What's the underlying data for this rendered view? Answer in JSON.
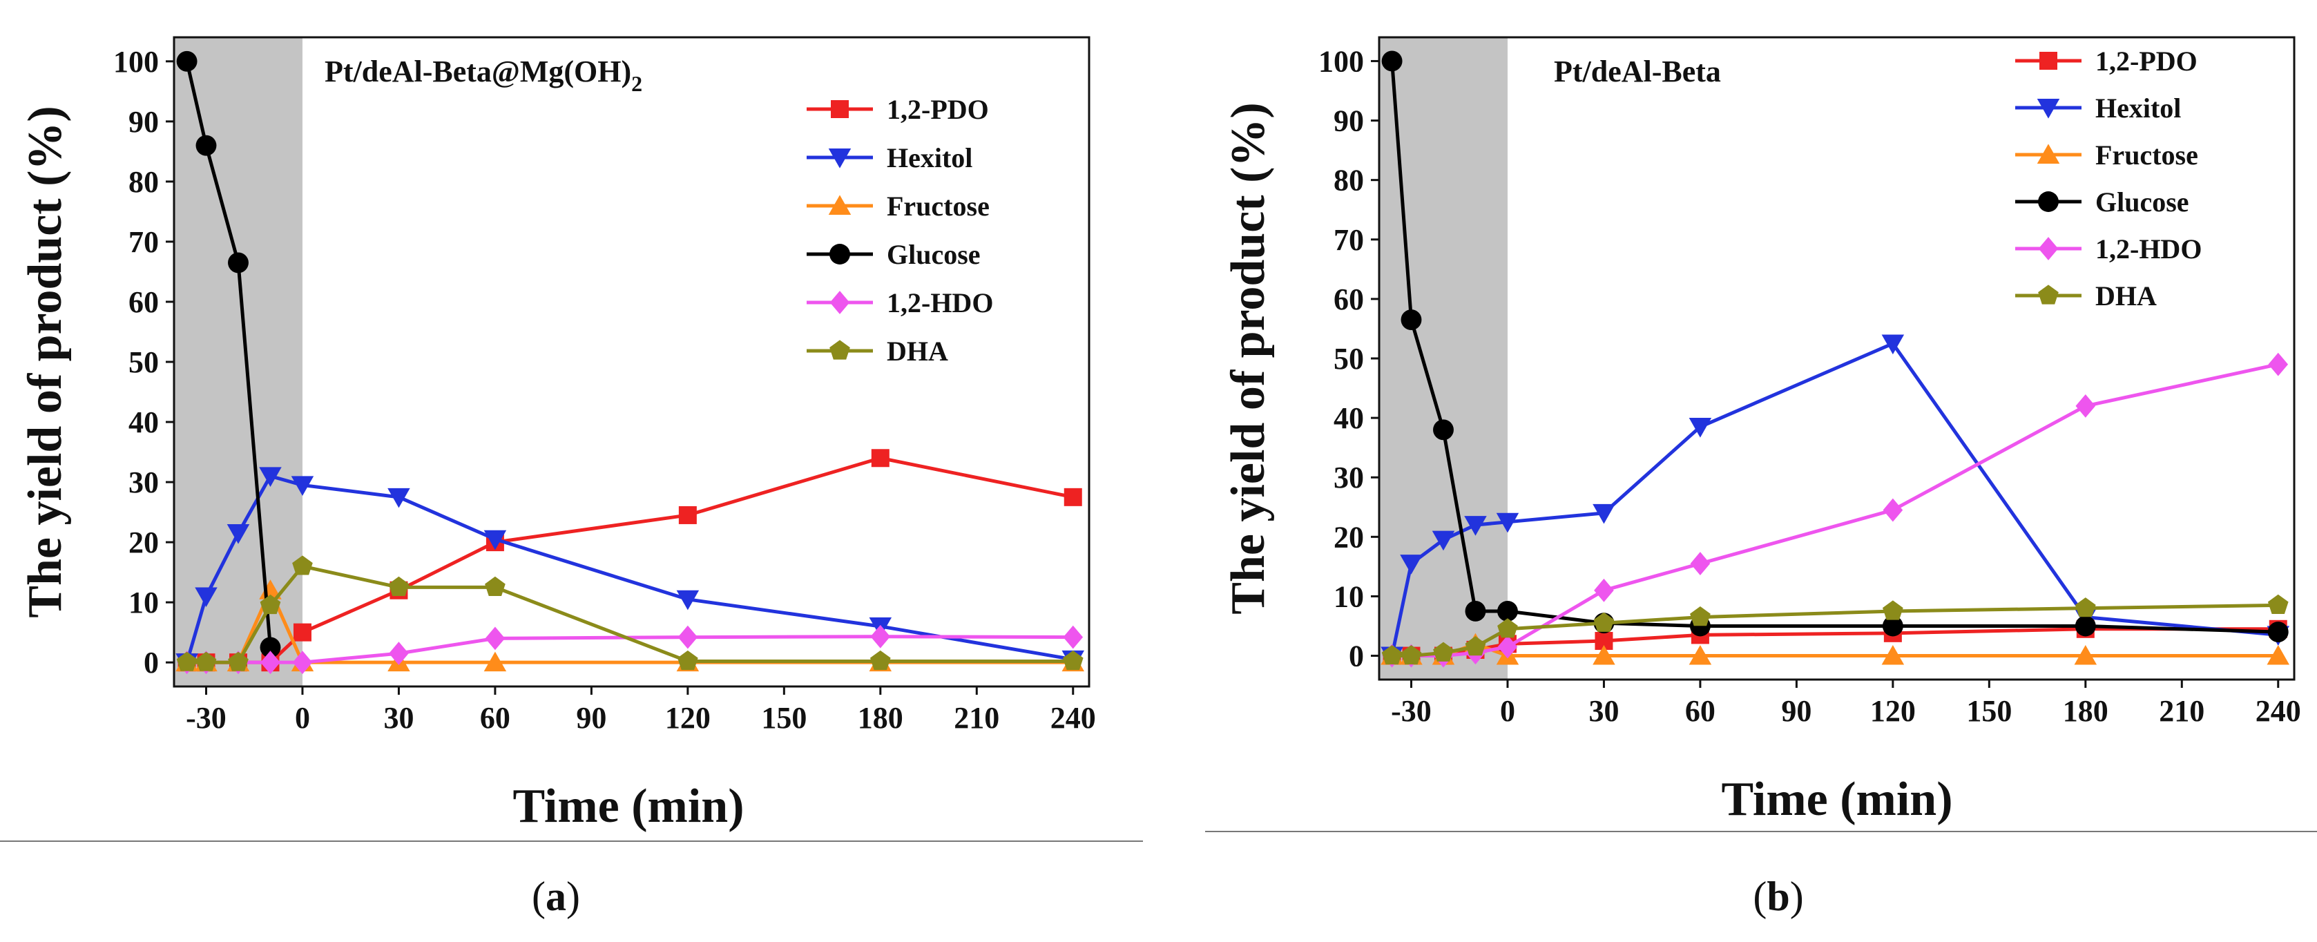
{
  "chart_data": [
    {
      "type": "line",
      "panel_label": "a",
      "title": "Pt/deAl-Beta@Mg(OH)",
      "title_subscript": "2",
      "xlabel": "Time (min)",
      "ylabel": "The yield of product (%)",
      "xlim": [
        -40,
        245
      ],
      "ylim": [
        -4,
        104
      ],
      "xticks": [
        -30,
        0,
        30,
        60,
        90,
        120,
        150,
        180,
        210,
        240
      ],
      "yticks": [
        0,
        10,
        20,
        30,
        40,
        50,
        60,
        70,
        80,
        90,
        100
      ],
      "shaded_region": [
        -40,
        0
      ],
      "legend_position": "top-right",
      "series": [
        {
          "name": "1,2-PDO",
          "color": "#ee2222",
          "marker": "square",
          "x": [
            -36,
            -30,
            -20,
            -10,
            0,
            30,
            60,
            120,
            180,
            240
          ],
          "y": [
            0,
            0,
            0,
            0,
            5,
            12,
            20,
            24.5,
            34,
            27.5
          ]
        },
        {
          "name": "Hexitol",
          "color": "#2233dd",
          "marker": "triangle-down",
          "x": [
            -36,
            -30,
            -20,
            -10,
            0,
            30,
            60,
            120,
            180,
            240
          ],
          "y": [
            0,
            11,
            21.5,
            31,
            29.5,
            27.5,
            20.5,
            10.5,
            6,
            0.5
          ]
        },
        {
          "name": "Fructose",
          "color": "#ff8c1a",
          "marker": "triangle-up",
          "x": [
            -36,
            -30,
            -20,
            -10,
            0,
            30,
            60,
            120,
            180,
            240
          ],
          "y": [
            0,
            0,
            0,
            12,
            0,
            0,
            0,
            0,
            0,
            0
          ]
        },
        {
          "name": "Glucose",
          "color": "#000000",
          "marker": "circle",
          "x": [
            -36,
            -30,
            -20,
            -10
          ],
          "y": [
            100,
            86,
            66.5,
            2.5
          ]
        },
        {
          "name": "1,2-HDO",
          "color": "#ee55ee",
          "marker": "diamond",
          "x": [
            -36,
            -30,
            -20,
            -10,
            0,
            30,
            60,
            120,
            180,
            240
          ],
          "y": [
            0,
            0,
            0,
            0,
            0,
            1.5,
            4,
            4.2,
            4.3,
            4.2
          ]
        },
        {
          "name": "DHA",
          "color": "#8b8b1a",
          "marker": "pentagon",
          "x": [
            -36,
            -30,
            -20,
            -10,
            0,
            30,
            60,
            120,
            180,
            240
          ],
          "y": [
            0,
            0,
            0,
            9.5,
            16,
            12.5,
            12.5,
            0.2,
            0.2,
            0.2
          ]
        }
      ]
    },
    {
      "type": "line",
      "panel_label": "b",
      "title": "Pt/deAl-Beta",
      "title_subscript": "",
      "xlabel": "Time (min)",
      "ylabel": "The yield of product (%)",
      "xlim": [
        -40,
        245
      ],
      "ylim": [
        -4,
        104
      ],
      "xticks": [
        -30,
        0,
        30,
        60,
        90,
        120,
        150,
        180,
        210,
        240
      ],
      "yticks": [
        0,
        10,
        20,
        30,
        40,
        50,
        60,
        70,
        80,
        90,
        100
      ],
      "shaded_region": [
        -40,
        0
      ],
      "legend_position": "top-right",
      "series": [
        {
          "name": "1,2-PDO",
          "color": "#ee2222",
          "marker": "square",
          "x": [
            -36,
            -30,
            -20,
            -10,
            0,
            30,
            60,
            120,
            180,
            240
          ],
          "y": [
            0,
            0,
            0,
            1,
            2,
            2.5,
            3.5,
            3.8,
            4.5,
            4.5
          ]
        },
        {
          "name": "Hexitol",
          "color": "#2233dd",
          "marker": "triangle-down",
          "x": [
            -36,
            -30,
            -20,
            -10,
            0,
            30,
            60,
            120,
            180,
            240
          ],
          "y": [
            0,
            15.5,
            19.5,
            22,
            22.5,
            24,
            38.5,
            52.5,
            6.5,
            3.5
          ]
        },
        {
          "name": "Fructose",
          "color": "#ff8c1a",
          "marker": "triangle-up",
          "x": [
            -36,
            -30,
            -20,
            -10,
            0,
            30,
            60,
            120,
            180,
            240
          ],
          "y": [
            0,
            0,
            0,
            2,
            0,
            0,
            0,
            0,
            0,
            0
          ]
        },
        {
          "name": "Glucose",
          "color": "#000000",
          "marker": "circle",
          "x": [
            -36,
            -30,
            -20,
            -10,
            0,
            30,
            60,
            120,
            180,
            240
          ],
          "y": [
            100,
            56.5,
            38,
            7.5,
            7.5,
            5.5,
            5,
            5,
            5,
            4
          ]
        },
        {
          "name": "1,2-HDO",
          "color": "#ee55ee",
          "marker": "diamond",
          "x": [
            -36,
            -30,
            -20,
            -10,
            0,
            30,
            60,
            120,
            180,
            240
          ],
          "y": [
            0,
            0,
            0,
            0.5,
            1.5,
            11,
            15.5,
            24.5,
            42,
            49
          ]
        },
        {
          "name": "DHA",
          "color": "#8b8b1a",
          "marker": "pentagon",
          "x": [
            -36,
            -30,
            -20,
            -10,
            0,
            30,
            60,
            120,
            180,
            240
          ],
          "y": [
            0,
            0,
            0.5,
            1.5,
            4.5,
            5.5,
            6.5,
            7.5,
            8,
            8.5
          ]
        }
      ]
    }
  ]
}
